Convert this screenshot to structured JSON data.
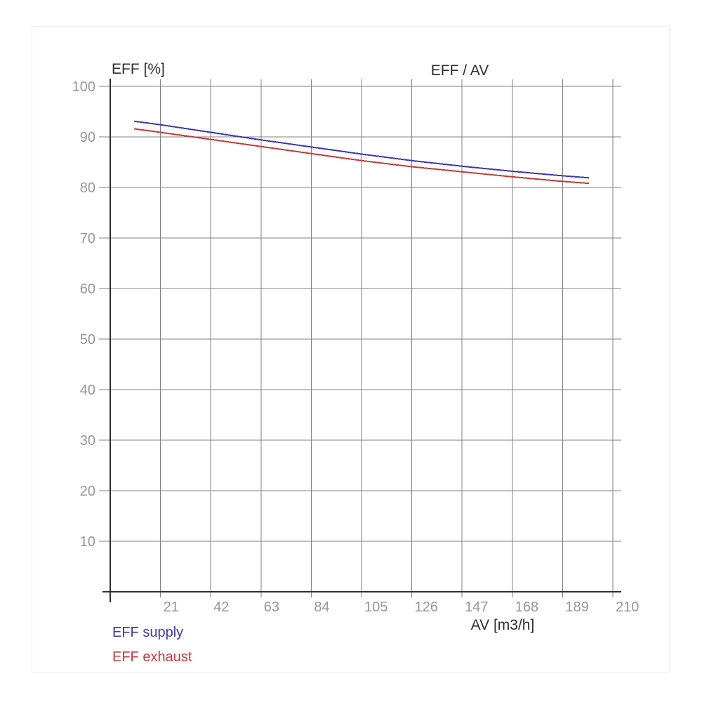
{
  "chart": {
    "title": "EFF / AV",
    "y_axis_label": "EFF [%]",
    "x_axis_label": "AV [m3/h]"
  },
  "legend": {
    "supply_label": "EFF supply",
    "exhaust_label": "EFF exhaust"
  },
  "colors": {
    "supply": "#3a3aae",
    "exhaust": "#c43b3b",
    "grid": "#818181",
    "axis": "#2f2f2f",
    "tick_text": "#979797",
    "label_text": "#2e2e2e",
    "card_border": "#ededed",
    "background": "#ffffff"
  },
  "chart_data": {
    "type": "line",
    "title": "EFF / AV",
    "xlabel": "AV [m3/h]",
    "ylabel": "EFF [%]",
    "xlim": [
      0,
      210
    ],
    "ylim": [
      0,
      100
    ],
    "x_ticks": [
      21,
      42,
      63,
      84,
      105,
      126,
      147,
      168,
      189,
      210
    ],
    "y_ticks": [
      10,
      20,
      30,
      40,
      50,
      60,
      70,
      80,
      90,
      100
    ],
    "grid": true,
    "legend_position": "bottom-left",
    "x": [
      10,
      21,
      42,
      63,
      84,
      105,
      126,
      147,
      168,
      189,
      200
    ],
    "series": [
      {
        "name": "EFF supply",
        "color": "#3a3aae",
        "values": [
          93.1,
          92.4,
          90.9,
          89.4,
          88.0,
          86.6,
          85.3,
          84.2,
          83.2,
          82.3,
          81.9
        ]
      },
      {
        "name": "EFF exhaust",
        "color": "#c43b3b",
        "values": [
          91.6,
          90.9,
          89.5,
          88.1,
          86.7,
          85.3,
          84.1,
          83.1,
          82.1,
          81.2,
          80.8
        ]
      }
    ]
  }
}
